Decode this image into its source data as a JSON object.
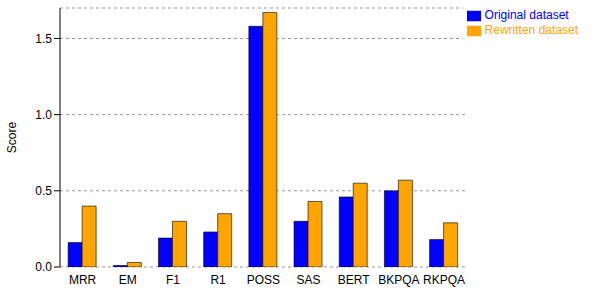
{
  "chart_data": {
    "type": "bar",
    "y_label": "Score",
    "categories": [
      "MRR",
      "EM",
      "F1",
      "R1",
      "POSS",
      "SAS",
      "BERT",
      "BKPQA",
      "RKPQA"
    ],
    "series": [
      {
        "name": "Original dataset",
        "color": "#0000ff",
        "values": [
          0.16,
          0.01,
          0.19,
          0.23,
          1.58,
          0.3,
          0.46,
          0.5,
          0.18
        ]
      },
      {
        "name": "Rewritten dataset",
        "color": "#ffa500",
        "values": [
          0.4,
          0.03,
          0.3,
          0.35,
          1.67,
          0.43,
          0.55,
          0.57,
          0.29
        ]
      }
    ],
    "ylim": [
      0,
      1.7
    ],
    "yticks": [
      {
        "value": 0,
        "label": "0.0"
      },
      {
        "value": 0.5,
        "label": "0.5"
      },
      {
        "value": 1,
        "label": "1.0"
      },
      {
        "value": 1.5,
        "label": "1.5"
      }
    ],
    "grid": true,
    "legend": "top-right"
  }
}
